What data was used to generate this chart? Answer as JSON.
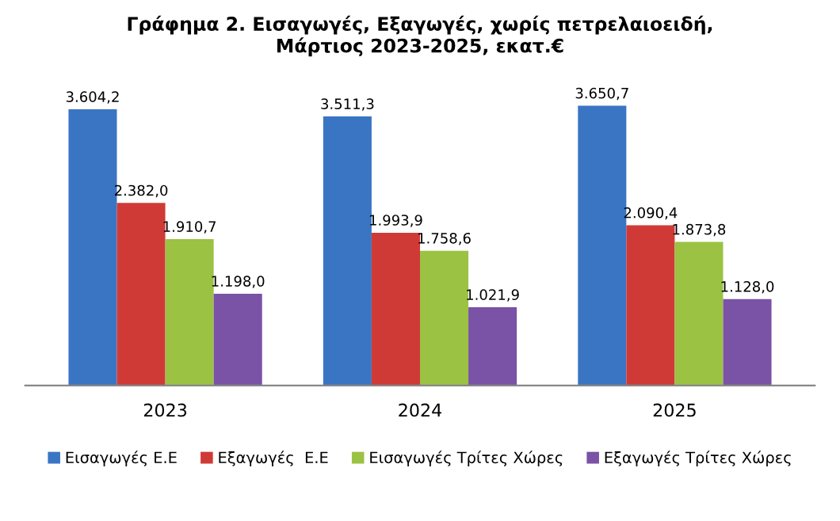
{
  "chart_data": {
    "type": "bar",
    "title": "Γράφημα 2. Εισαγωγές, Εξαγωγές, χωρίς πετρελαιοειδή,\nΜάρτιος 2023-2025, εκατ.€",
    "categories": [
      "2023",
      "2024",
      "2025"
    ],
    "series": [
      {
        "name": "Εισαγωγές Ε.Ε",
        "color": "#3a75c4",
        "values": [
          3604.2,
          3511.3,
          3650.7
        ],
        "value_labels": [
          "3.604,2",
          "3.511,3",
          "3.650,7"
        ]
      },
      {
        "name": "Εξαγωγές  Ε.Ε",
        "color": "#d03a36",
        "values": [
          2382.0,
          1993.9,
          2090.4
        ],
        "value_labels": [
          "2.382,0",
          "1.993,9",
          "2.090,4"
        ]
      },
      {
        "name": "Εισαγωγές Τρίτες Χώρες",
        "color": "#9bc243",
        "values": [
          1910.7,
          1758.6,
          1873.8
        ],
        "value_labels": [
          "1.910,7",
          "1.758,6",
          "1.873,8"
        ]
      },
      {
        "name": "Εξαγωγές Τρίτες Χώρες",
        "color": "#7a52a6",
        "values": [
          1198.0,
          1021.9,
          1128.0
        ],
        "value_labels": [
          "1.198,0",
          "1.021,9",
          "1.128,0"
        ]
      }
    ],
    "legend": "bottom"
  }
}
